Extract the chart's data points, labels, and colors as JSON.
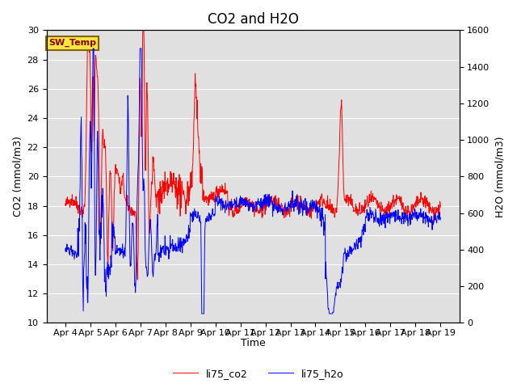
{
  "title": "CO2 and H2O",
  "xlabel": "Time",
  "ylabel_left": "CO2 (mmol/m3)",
  "ylabel_right": "H2O (mmol/m3)",
  "ylim_left": [
    10,
    30
  ],
  "ylim_right": [
    0,
    1600
  ],
  "yticks_left": [
    10,
    12,
    14,
    16,
    18,
    20,
    22,
    24,
    26,
    28,
    30
  ],
  "yticks_right": [
    0,
    200,
    400,
    600,
    800,
    1000,
    1200,
    1400,
    1600
  ],
  "bg_color": "#e0e0e0",
  "line_color_co2": "red",
  "line_color_h2o": "blue",
  "label_co2": "li75_co2",
  "label_h2o": "li75_h2o",
  "sw_temp_label": "SW_Temp",
  "title_fontsize": 12,
  "axis_label_fontsize": 9,
  "tick_fontsize": 8
}
